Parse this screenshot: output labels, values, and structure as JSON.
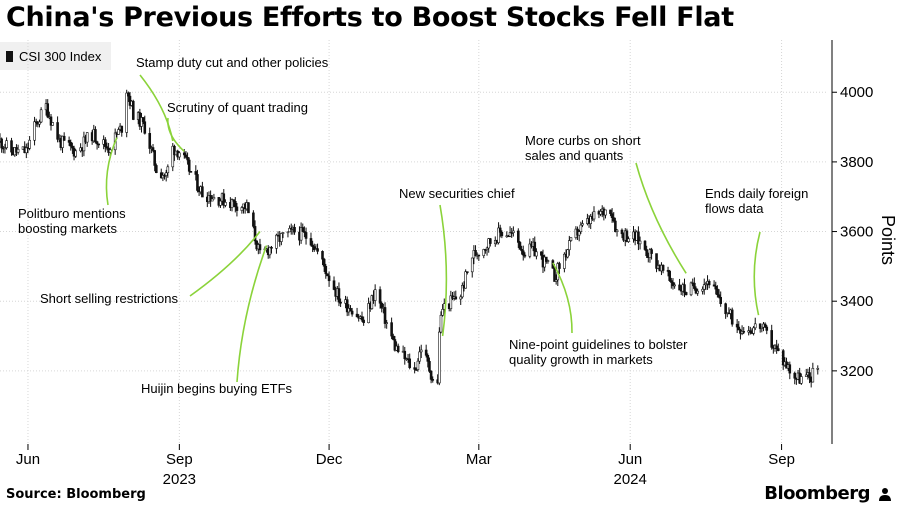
{
  "chart_data": {
    "type": "candlestick",
    "title": "China's Previous Efforts to Boost Stocks Fell Flat",
    "legend": {
      "label": "CSI 300 Index",
      "placement": "top-left"
    },
    "ylabel": "Points",
    "ylim": [
      2990,
      4150
    ],
    "yticks": [
      3200,
      3400,
      3600,
      3800,
      4000
    ],
    "xlim": [
      "2023-05-15",
      "2024-09-28"
    ],
    "xticks": [
      {
        "date": "2023-06-01",
        "label": "Jun"
      },
      {
        "date": "2023-09-01",
        "label": "Sep"
      },
      {
        "date": "2023-12-01",
        "label": "Dec"
      },
      {
        "date": "2024-03-01",
        "label": "Mar"
      },
      {
        "date": "2024-06-01",
        "label": "Jun"
      },
      {
        "date": "2024-09-01",
        "label": "Sep"
      }
    ],
    "year_labels": [
      {
        "date": "2023-09-01",
        "label": "2023"
      },
      {
        "date": "2024-06-01",
        "label": "2024"
      }
    ],
    "grid": true,
    "series": [
      {
        "points": [
          [
            "2023-05-15",
            3860
          ],
          [
            "2023-05-22",
            3830
          ],
          [
            "2023-05-31",
            3830
          ],
          [
            "2023-06-05",
            3900
          ],
          [
            "2023-06-12",
            3960
          ],
          [
            "2023-06-20",
            3860
          ],
          [
            "2023-06-30",
            3830
          ],
          [
            "2023-07-10",
            3880
          ],
          [
            "2023-07-20",
            3840
          ],
          [
            "2023-07-28",
            3900
          ],
          [
            "2023-07-31",
            4010
          ],
          [
            "2023-08-04",
            3940
          ],
          [
            "2023-08-11",
            3900
          ],
          [
            "2023-08-18",
            3780
          ],
          [
            "2023-08-24",
            3760
          ],
          [
            "2023-08-28",
            3840
          ],
          [
            "2023-09-01",
            3830
          ],
          [
            "2023-09-15",
            3710
          ],
          [
            "2023-09-28",
            3690
          ],
          [
            "2023-10-12",
            3670
          ],
          [
            "2023-10-20",
            3530
          ],
          [
            "2023-10-25",
            3550
          ],
          [
            "2023-11-01",
            3580
          ],
          [
            "2023-11-10",
            3600
          ],
          [
            "2023-11-20",
            3580
          ],
          [
            "2023-11-28",
            3500
          ],
          [
            "2023-12-08",
            3400
          ],
          [
            "2023-12-15",
            3380
          ],
          [
            "2023-12-22",
            3340
          ],
          [
            "2023-12-29",
            3430
          ],
          [
            "2024-01-10",
            3270
          ],
          [
            "2024-01-22",
            3200
          ],
          [
            "2024-01-26",
            3270
          ],
          [
            "2024-02-02",
            3180
          ],
          [
            "2024-02-05",
            3160
          ],
          [
            "2024-02-06",
            3320
          ],
          [
            "2024-02-08",
            3380
          ],
          [
            "2024-02-19",
            3420
          ],
          [
            "2024-02-26",
            3530
          ],
          [
            "2024-03-05",
            3560
          ],
          [
            "2024-03-15",
            3600
          ],
          [
            "2024-03-22",
            3590
          ],
          [
            "2024-03-29",
            3540
          ],
          [
            "2024-04-03",
            3550
          ],
          [
            "2024-04-12",
            3500
          ],
          [
            "2024-04-16",
            3470
          ],
          [
            "2024-04-22",
            3530
          ],
          [
            "2024-04-30",
            3600
          ],
          [
            "2024-05-10",
            3640
          ],
          [
            "2024-05-20",
            3670
          ],
          [
            "2024-05-24",
            3600
          ],
          [
            "2024-06-05",
            3580
          ],
          [
            "2024-06-14",
            3530
          ],
          [
            "2024-06-25",
            3460
          ],
          [
            "2024-07-05",
            3430
          ],
          [
            "2024-07-10",
            3440
          ],
          [
            "2024-07-19",
            3460
          ],
          [
            "2024-07-25",
            3400
          ],
          [
            "2024-08-05",
            3330
          ],
          [
            "2024-08-12",
            3320
          ],
          [
            "2024-08-19",
            3330
          ],
          [
            "2024-08-26",
            3280
          ],
          [
            "2024-09-02",
            3230
          ],
          [
            "2024-09-10",
            3180
          ],
          [
            "2024-09-18",
            3180
          ],
          [
            "2024-09-23",
            3210
          ]
        ]
      }
    ],
    "annotations": [
      {
        "text": [
          "Politburo mentions",
          "boosting markets"
        ],
        "point": [
          "2023-07-25",
          3870
        ]
      },
      {
        "text": [
          "Stamp duty cut and other policies"
        ],
        "point": [
          "2023-08-28",
          3860
        ]
      },
      {
        "text": [
          "Scrutiny of quant trading"
        ],
        "point": [
          "2023-09-04",
          3830
        ]
      },
      {
        "text": [
          "Short selling restrictions"
        ],
        "point": [
          "2023-10-20",
          3600
        ]
      },
      {
        "text": [
          "Huijin begins buying ETFs"
        ],
        "point": [
          "2023-10-24",
          3560
        ]
      },
      {
        "text": [
          "New securities chief"
        ],
        "point": [
          "2024-02-08",
          3300
        ]
      },
      {
        "text": [
          "More curbs on short",
          "sales and quants"
        ],
        "point": [
          "2024-07-05",
          3480
        ]
      },
      {
        "text": [
          "Nine-point guidelines to bolster",
          "quality growth in markets"
        ],
        "point": [
          "2024-04-15",
          3510
        ]
      },
      {
        "text": [
          "Ends daily foreign",
          "flows data"
        ],
        "point": [
          "2024-08-18",
          3360
        ]
      }
    ]
  },
  "footer": {
    "source": "Source: Bloomberg",
    "brand": "Bloomberg"
  }
}
